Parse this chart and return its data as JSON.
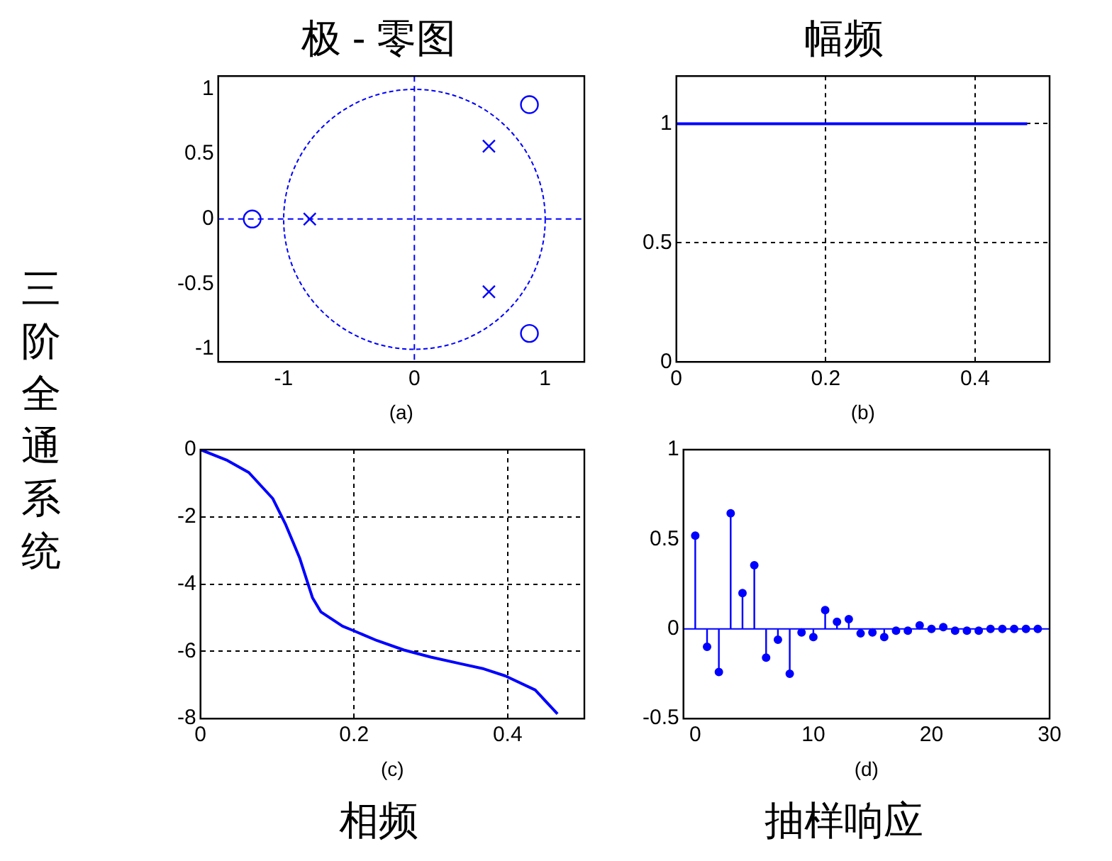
{
  "chart_data": [
    {
      "type": "scatter",
      "title": "极 - 零图",
      "xlabel": "(a)",
      "annotations": [
        "三阶全通系统"
      ],
      "xlim": [
        -1.5,
        1.3
      ],
      "ylim": [
        -1.1,
        1.1
      ],
      "xticks": [
        -1,
        0,
        1
      ],
      "yticks": [
        -1,
        -0.5,
        0,
        0.5,
        1
      ],
      "ref_lines": [
        {
          "axis": "x",
          "value": 0,
          "color": "#0000ff",
          "line_style": "dashed"
        },
        {
          "axis": "y",
          "value": 0,
          "color": "#0000ff",
          "line_style": "dashed"
        }
      ],
      "series": [
        {
          "marker": "circle",
          "color": "#0000ff",
          "x": [
            -1.24,
            0.88,
            0.88
          ],
          "values": [
            0,
            0.88,
            -0.88
          ]
        },
        {
          "marker": "cross",
          "color": "#0000ff",
          "x": [
            -0.8,
            0.57,
            0.57
          ],
          "values": [
            0,
            0.56,
            -0.56
          ]
        }
      ]
    },
    {
      "type": "line",
      "title": "幅频",
      "xlabel": "(b)",
      "xlim": [
        0,
        0.5
      ],
      "ylim": [
        0,
        1.2
      ],
      "xticks": [
        0,
        0.2,
        0.4
      ],
      "yticks": [
        0,
        0.5,
        1
      ],
      "grid": true,
      "series": [
        {
          "color": "#0000ff",
          "x": [
            0,
            0.47
          ],
          "values": [
            1,
            1
          ]
        }
      ]
    },
    {
      "type": "line",
      "title": "相频",
      "xlabel": "(c)",
      "xlim": [
        0,
        0.5
      ],
      "ylim": [
        -8,
        0
      ],
      "xticks": [
        0,
        0.2,
        0.4
      ],
      "yticks": [
        -8,
        -6,
        -4,
        -2,
        0
      ],
      "grid": true,
      "series": [
        {
          "color": "#0000ff",
          "x": [
            0,
            0.035,
            0.063,
            0.094,
            0.111,
            0.129,
            0.146,
            0.157,
            0.185,
            0.2,
            0.23,
            0.265,
            0.3,
            0.341,
            0.369,
            0.397,
            0.436,
            0.465
          ],
          "values": [
            0,
            -0.32,
            -0.68,
            -1.45,
            -2.23,
            -3.21,
            -4.41,
            -4.83,
            -5.25,
            -5.39,
            -5.68,
            -5.96,
            -6.17,
            -6.38,
            -6.52,
            -6.73,
            -7.15,
            -7.86
          ]
        }
      ]
    },
    {
      "type": "lollipop",
      "title": "抽样响应",
      "xlabel": "(d)",
      "xlim": [
        -1,
        30
      ],
      "ylim": [
        -0.5,
        1
      ],
      "xticks": [
        0,
        10,
        20,
        30
      ],
      "yticks": [
        -0.5,
        0,
        0.5,
        1
      ],
      "marker": "circle",
      "ref_lines": [
        {
          "axis": "y",
          "value": 0,
          "color": "#0000ff",
          "line_style": "solid"
        }
      ],
      "series": [
        {
          "color": "#0000ff",
          "x": [
            0,
            1,
            2,
            3,
            4,
            5,
            6,
            7,
            8,
            9,
            10,
            11,
            12,
            13,
            14,
            15,
            16,
            17,
            18,
            19,
            20,
            21,
            22,
            23,
            24,
            25,
            26,
            27,
            28,
            29
          ],
          "values": [
            0.52,
            -0.1,
            -0.24,
            0.645,
            0.2,
            0.355,
            -0.16,
            -0.06,
            -0.25,
            -0.02,
            -0.045,
            0.105,
            0.04,
            0.055,
            -0.025,
            -0.02,
            -0.045,
            -0.01,
            -0.01,
            0.02,
            0,
            0.01,
            -0.01,
            -0.01,
            -0.01,
            0,
            0,
            0,
            0,
            0
          ]
        }
      ]
    }
  ]
}
